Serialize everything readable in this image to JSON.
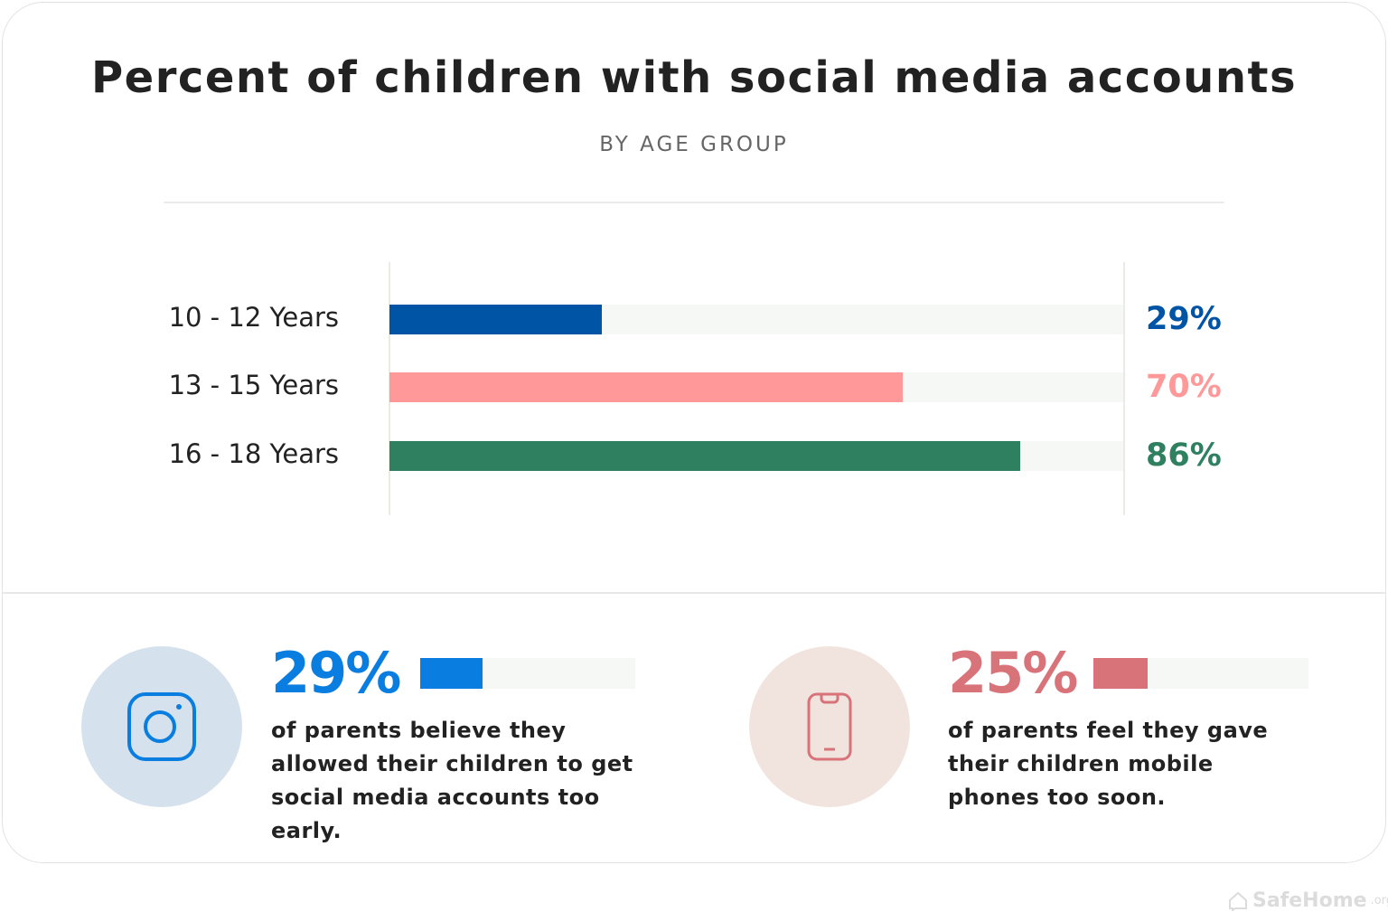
{
  "chart_data": {
    "type": "bar",
    "title": "Percent of children with social media accounts",
    "subtitle": "BY AGE GROUP",
    "categories": [
      "10 - 12 Years",
      "13 - 15 Years",
      "16 - 18 Years"
    ],
    "values": [
      29,
      70,
      86
    ],
    "value_labels": [
      "29%",
      "70%",
      "86%"
    ],
    "colors": [
      "#0054a6",
      "#ff9999",
      "#2e8060"
    ],
    "xlim": [
      0,
      100
    ],
    "orientation": "horizontal"
  },
  "stats": [
    {
      "value": 29,
      "label": "29%",
      "text": "of parents believe they allowed their children to get social media accounts too early.",
      "color": "#0a7ee0",
      "circle": "#d5e2ed",
      "icon": "instagram-icon"
    },
    {
      "value": 25,
      "label": "25%",
      "text": "of parents feel they gave their children mobile phones too soon.",
      "color": "#d9737a",
      "circle": "#f1e4de",
      "icon": "mobile-phone-icon"
    }
  ],
  "logo": {
    "name": "SafeHome",
    "suffix": ".org"
  }
}
